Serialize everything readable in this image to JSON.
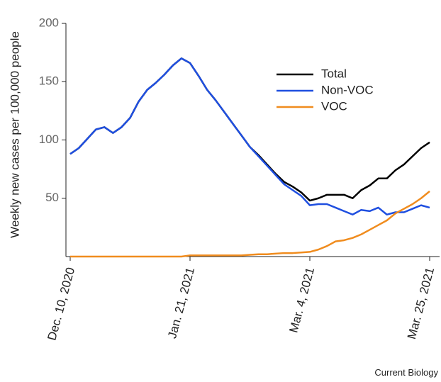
{
  "chart_data": {
    "type": "line",
    "y_label": "Weekly new cases per 100,000 people",
    "source": "Current Biology",
    "x": [
      0,
      1,
      2,
      3,
      4,
      5,
      6,
      7,
      8,
      9,
      10,
      11,
      12,
      13,
      14,
      15,
      16,
      17,
      18,
      19,
      20,
      21,
      22,
      23,
      24,
      25,
      26,
      27,
      28,
      29,
      30,
      31,
      32,
      33,
      34,
      35,
      36,
      37,
      38,
      39,
      40,
      41,
      42
    ],
    "xlim": [
      0,
      42
    ],
    "xticks": [
      {
        "value": 0,
        "label": "Dec. 10, 2020"
      },
      {
        "value": 14,
        "label": "Jan. 21, 2021"
      },
      {
        "value": 28,
        "label": "Mar.  4, 2021"
      },
      {
        "value": 42,
        "label": "Mar. 25, 2021"
      }
    ],
    "ylim": [
      0,
      200
    ],
    "yticks": [
      50,
      100,
      150,
      200
    ],
    "series": [
      {
        "name": "Total",
        "color": "#000000",
        "values": [
          88,
          93,
          101,
          109,
          111,
          106,
          111,
          119,
          133,
          143,
          149,
          156,
          164,
          170,
          166,
          155,
          143,
          134,
          124,
          114,
          104,
          94,
          87,
          79,
          71,
          64,
          60,
          55,
          48,
          50,
          53,
          53,
          53,
          50,
          57,
          61,
          67,
          67,
          74,
          79,
          86,
          93,
          98
        ]
      },
      {
        "name": "Non-VOC",
        "color": "#1f4fe0",
        "values": [
          88,
          93,
          101,
          109,
          111,
          106,
          111,
          119,
          133,
          143,
          149,
          156,
          164,
          170,
          166,
          155,
          143,
          134,
          124,
          114,
          104,
          94,
          86,
          78,
          70,
          62,
          57,
          52,
          44,
          45,
          45,
          42,
          39,
          36,
          40,
          39,
          42,
          36,
          38,
          38,
          41,
          44,
          42
        ]
      },
      {
        "name": "VOC",
        "color": "#f08c1e",
        "values": [
          0,
          0,
          0,
          0,
          0,
          0,
          0,
          0,
          0,
          0,
          0,
          0,
          0,
          0,
          1,
          1,
          1,
          1,
          1,
          1,
          1,
          1.5,
          2,
          2,
          2.5,
          3,
          3,
          3.5,
          4,
          6,
          9,
          13,
          14,
          16,
          19,
          23,
          27,
          31,
          37,
          41,
          45,
          50,
          56
        ]
      }
    ],
    "legend": "upper right"
  }
}
